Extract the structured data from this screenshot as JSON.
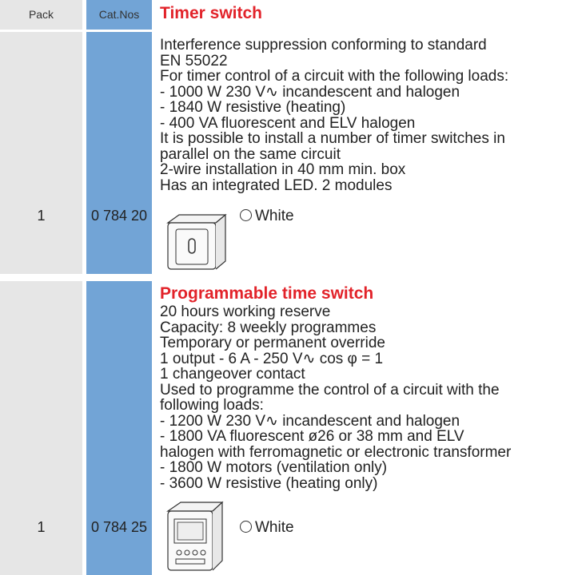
{
  "header": {
    "pack": "Pack",
    "cat_nos": "Cat.Nos"
  },
  "sections": [
    {
      "title": "Timer switch",
      "lines": [
        "Interference suppression conforming to standard",
        "EN 55022",
        "For timer control of a circuit with the following loads:",
        "- 1000 W 230 V∿ incandescent and halogen",
        "- 1840 W resistive (heating)",
        "- 400 VA fluorescent and ELV halogen",
        "It is possible to install a number of timer switches in",
        "parallel on the same circuit",
        "2-wire installation in 40 mm min. box",
        "Has an integrated LED. 2 modules"
      ],
      "pack": "1",
      "cat_no": "0 784 20",
      "finish": "White"
    },
    {
      "title": "Programmable time switch",
      "lines": [
        "20 hours working reserve",
        "Capacity: 8 weekly programmes",
        "Temporary or permanent override",
        "1 output - 6 A - 250 V∿ cos φ = 1",
        "1 changeover contact",
        "Used to programme the control of a circuit with the",
        "following loads:",
        "- 1200 W 230 V∿ incandescent and halogen",
        "- 1800 VA fluorescent ø26 or 38 mm and ELV",
        "halogen with ferromagnetic or electronic transformer",
        "- 1800 W motors (ventilation only)",
        "- 3600 W resistive (heating only)"
      ],
      "pack": "1",
      "cat_no": "0 784 25",
      "finish": "White"
    }
  ]
}
